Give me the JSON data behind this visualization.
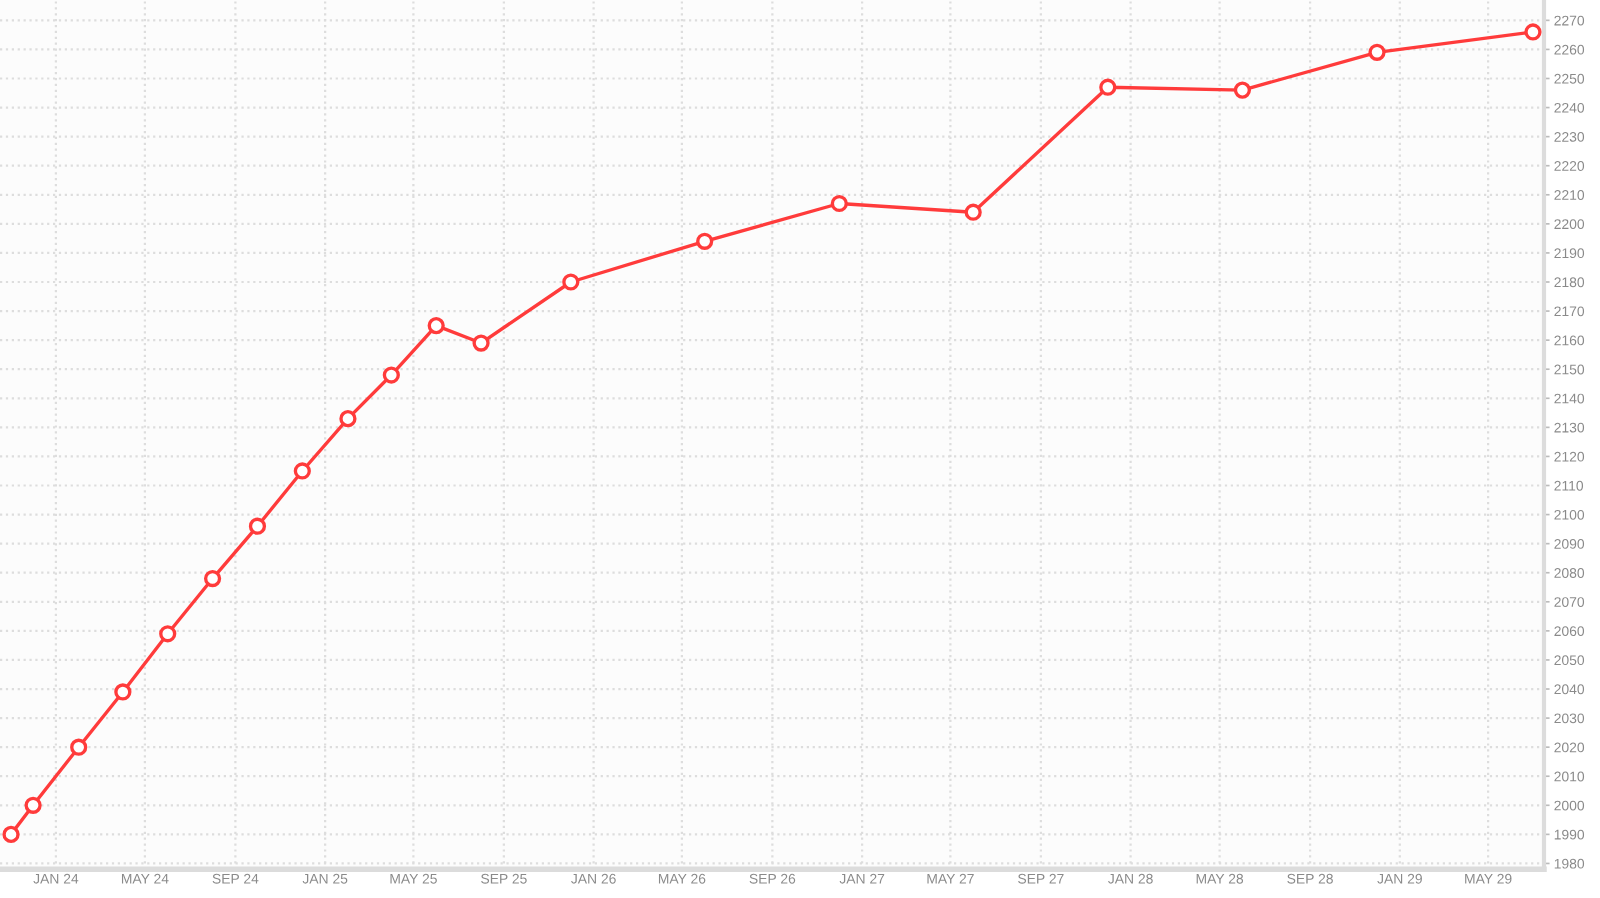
{
  "chart_data": {
    "type": "line",
    "x": [
      "2023-11",
      "2023-12",
      "2024-02",
      "2024-04",
      "2024-06",
      "2024-08",
      "2024-10",
      "2024-12",
      "2025-02",
      "2025-04",
      "2025-06",
      "2025-08",
      "2025-12",
      "2026-06",
      "2026-12",
      "2027-06",
      "2027-12",
      "2028-06",
      "2028-12",
      "2029-07"
    ],
    "series": [
      {
        "color": "#ff3b3b",
        "values": [
          1990,
          2000,
          2020,
          2039,
          2059,
          2078,
          2096,
          2115,
          2133,
          2148,
          2165,
          2159,
          2180,
          2194,
          2207,
          2204,
          2247,
          2246,
          2259,
          2266
        ]
      }
    ],
    "xlim": [
      "2023-10-17",
      "2029-07-16"
    ],
    "ylim": [
      1978,
      2277
    ],
    "xticks": [
      {
        "value": "2024-01",
        "label": "JAN 24"
      },
      {
        "value": "2024-05",
        "label": "MAY 24"
      },
      {
        "value": "2024-09",
        "label": "SEP 24"
      },
      {
        "value": "2025-01",
        "label": "JAN 25"
      },
      {
        "value": "2025-05",
        "label": "MAY 25"
      },
      {
        "value": "2025-09",
        "label": "SEP 25"
      },
      {
        "value": "2026-01",
        "label": "JAN 26"
      },
      {
        "value": "2026-05",
        "label": "MAY 26"
      },
      {
        "value": "2026-09",
        "label": "SEP 26"
      },
      {
        "value": "2027-01",
        "label": "JAN 27"
      },
      {
        "value": "2027-05",
        "label": "MAY 27"
      },
      {
        "value": "2027-09",
        "label": "SEP 27"
      },
      {
        "value": "2028-01",
        "label": "JAN 28"
      },
      {
        "value": "2028-05",
        "label": "MAY 28"
      },
      {
        "value": "2028-09",
        "label": "SEP 28"
      },
      {
        "value": "2029-01",
        "label": "JAN 29"
      },
      {
        "value": "2029-05",
        "label": "MAY 29"
      }
    ],
    "yticks": [
      1980,
      1990,
      2000,
      2010,
      2020,
      2030,
      2040,
      2050,
      2060,
      2070,
      2080,
      2090,
      2100,
      2110,
      2120,
      2130,
      2140,
      2150,
      2160,
      2170,
      2180,
      2190,
      2200,
      2210,
      2220,
      2230,
      2240,
      2250,
      2260,
      2270
    ],
    "grid": true,
    "marker": "circle",
    "line_style": "solid"
  }
}
